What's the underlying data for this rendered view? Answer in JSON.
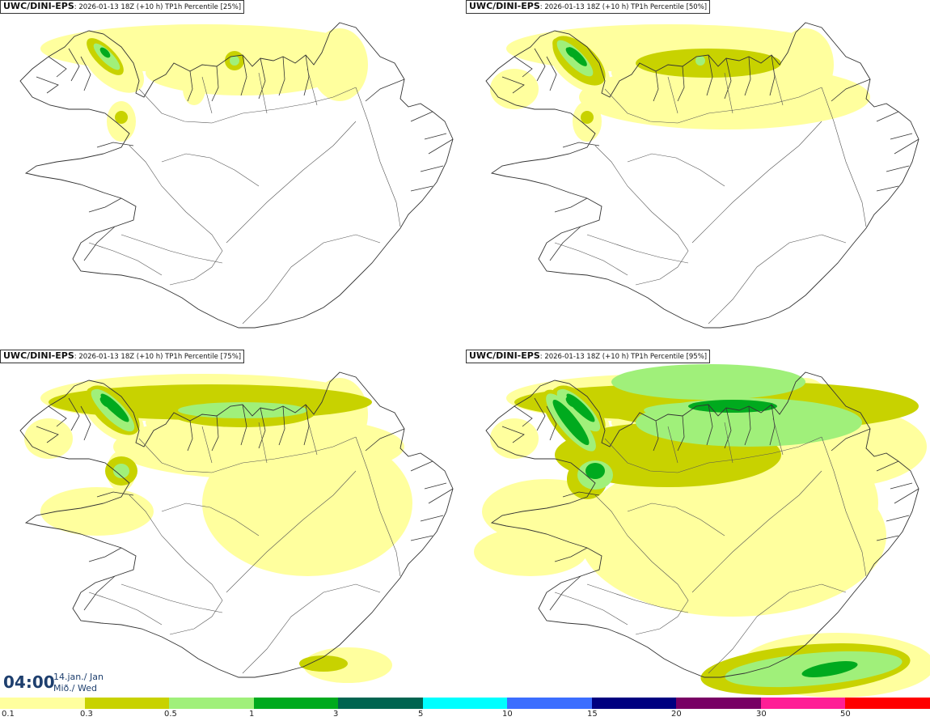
{
  "panels": [
    {
      "model": "UWC/DINI-EPS",
      "meta": ": 2026-01-13 18Z (+10 h) TP1h Percentile [25%]",
      "level": 0
    },
    {
      "model": "UWC/DINI-EPS",
      "meta": ": 2026-01-13 18Z (+10 h) TP1h Percentile [50%]",
      "level": 1
    },
    {
      "model": "UWC/DINI-EPS",
      "meta": ": 2026-01-13 18Z (+10 h) TP1h Percentile [75%]",
      "level": 2
    },
    {
      "model": "UWC/DINI-EPS",
      "meta": ": 2026-01-13 18Z (+10 h) TP1h Percentile [95%]",
      "level": 3
    }
  ],
  "valid_time": {
    "time": "04:00",
    "date_line1": "14.jan./ Jan",
    "date_line2": "Mið./ Wed"
  },
  "legend": {
    "labels": [
      "0.1",
      "0.3",
      "0.5",
      "1",
      "3",
      "5",
      "10",
      "15",
      "20",
      "30",
      "50"
    ],
    "colors": [
      "#ffff9e",
      "#c8d200",
      "#a0f07a",
      "#00aa1e",
      "#006450",
      "#00ffff",
      "#3c6eff",
      "#000080",
      "#780064",
      "#ff1e96",
      "#ff0000"
    ]
  }
}
